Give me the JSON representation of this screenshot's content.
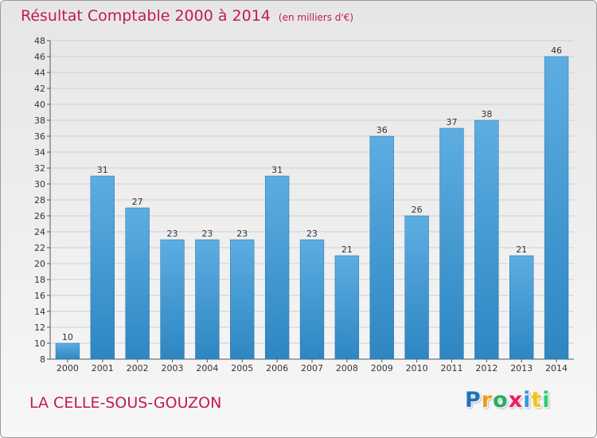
{
  "header": {
    "title": "Résultat Comptable 2000 à 2014",
    "unit": "(en milliers d'€)"
  },
  "footer": {
    "commune": "LA CELLE-SOUS-GOUZON",
    "logo_letters": [
      {
        "char": "P",
        "color": "#1e73be"
      },
      {
        "char": "r",
        "color": "#f39c12"
      },
      {
        "char": "o",
        "color": "#27ae60"
      },
      {
        "char": "x",
        "color": "#e91e63"
      },
      {
        "char": "i",
        "color": "#3498db"
      },
      {
        "char": "t",
        "color": "#f1c40f"
      },
      {
        "char": "i",
        "color": "#2ecc71"
      }
    ]
  },
  "colors": {
    "title": "#c2185b",
    "bar_top": "#5dade2",
    "bar_bottom": "#2e86c1",
    "grid": "#cfcfcf",
    "axis_text": "#333333"
  },
  "chart_data": {
    "type": "bar",
    "title": "Résultat Comptable 2000 à 2014",
    "categories": [
      "2000",
      "2001",
      "2002",
      "2003",
      "2004",
      "2005",
      "2006",
      "2007",
      "2008",
      "2009",
      "2010",
      "2011",
      "2012",
      "2013",
      "2014"
    ],
    "values": [
      10,
      31,
      27,
      23,
      23,
      23,
      31,
      23,
      21,
      36,
      26,
      37,
      38,
      21,
      46
    ],
    "ylim": [
      8,
      48
    ],
    "yticks": [
      8,
      10,
      12,
      14,
      16,
      18,
      20,
      22,
      24,
      26,
      28,
      30,
      32,
      34,
      36,
      38,
      40,
      42,
      44,
      46,
      48
    ],
    "grid": true,
    "xlabel": "",
    "ylabel": ""
  }
}
